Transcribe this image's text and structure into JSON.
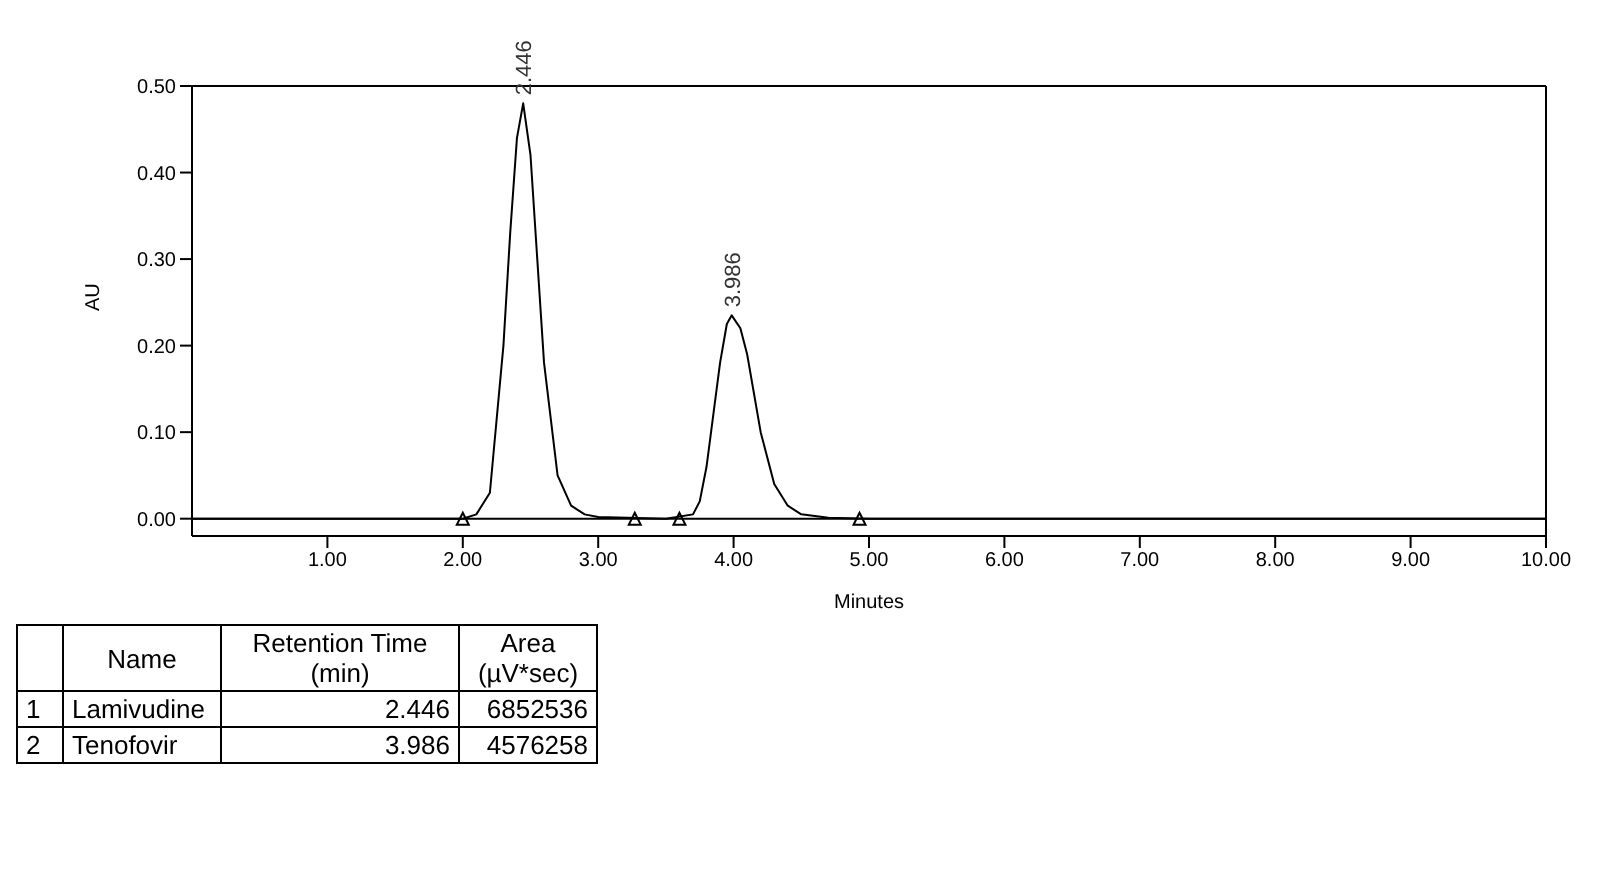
{
  "chart_data": {
    "type": "line",
    "xlabel": "Minutes",
    "ylabel": "AU",
    "xlim": [
      0,
      10
    ],
    "ylim": [
      -0.02,
      0.5
    ],
    "xticks": [
      {
        "value": 1,
        "label": "1.00"
      },
      {
        "value": 2,
        "label": "2.00"
      },
      {
        "value": 3,
        "label": "3.00"
      },
      {
        "value": 4,
        "label": "4.00"
      },
      {
        "value": 5,
        "label": "5.00"
      },
      {
        "value": 6,
        "label": "6.00"
      },
      {
        "value": 7,
        "label": "7.00"
      },
      {
        "value": 8,
        "label": "8.00"
      },
      {
        "value": 9,
        "label": "9.00"
      },
      {
        "value": 10,
        "label": "10.00"
      }
    ],
    "yticks": [
      {
        "value": 0,
        "label": "0.00"
      },
      {
        "value": 0.1,
        "label": "0.10"
      },
      {
        "value": 0.2,
        "label": "0.20"
      },
      {
        "value": 0.3,
        "label": "0.30"
      },
      {
        "value": 0.4,
        "label": "0.40"
      },
      {
        "value": 0.5,
        "label": "0.50"
      }
    ],
    "grid": false,
    "legend": false,
    "marker": "none",
    "line_style": "solid",
    "series": [
      {
        "color": "#000000",
        "x": [
          0,
          1,
          2,
          2.1,
          2.2,
          2.3,
          2.35,
          2.4,
          2.446,
          2.5,
          2.55,
          2.6,
          2.7,
          2.8,
          2.9,
          3,
          3.5,
          3.7,
          3.75,
          3.8,
          3.85,
          3.9,
          3.95,
          3.986,
          4.05,
          4.1,
          4.2,
          4.3,
          4.4,
          4.5,
          4.7,
          5,
          10
        ],
        "values": [
          0,
          0,
          0,
          0.005,
          0.03,
          0.2,
          0.33,
          0.44,
          0.48,
          0.42,
          0.3,
          0.18,
          0.05,
          0.015,
          0.005,
          0.002,
          0,
          0.005,
          0.02,
          0.06,
          0.12,
          0.18,
          0.225,
          0.235,
          0.22,
          0.19,
          0.1,
          0.04,
          0.015,
          0.005,
          0.001,
          0,
          0
        ]
      },
      {
        "type": "scatter",
        "color": "#000000",
        "marker": "triangle",
        "x": [
          2,
          3.27,
          3.6,
          4.93
        ],
        "values": [
          0,
          0,
          0,
          0
        ]
      }
    ],
    "ref_lines": [
      {
        "axis": "y",
        "value": 0,
        "color": "#000000"
      }
    ],
    "annotations": [
      {
        "text": "2.446",
        "x": 2.446,
        "y": 0.48
      },
      {
        "text": "3.986",
        "x": 3.986,
        "y": 0.235
      },
      "Name",
      "Retention Time (min)",
      "Area (µV*sec)",
      "1",
      "Lamivudine",
      "2.446",
      "6852536",
      "2",
      "Tenofovir",
      "3.986",
      "4576258"
    ]
  }
}
